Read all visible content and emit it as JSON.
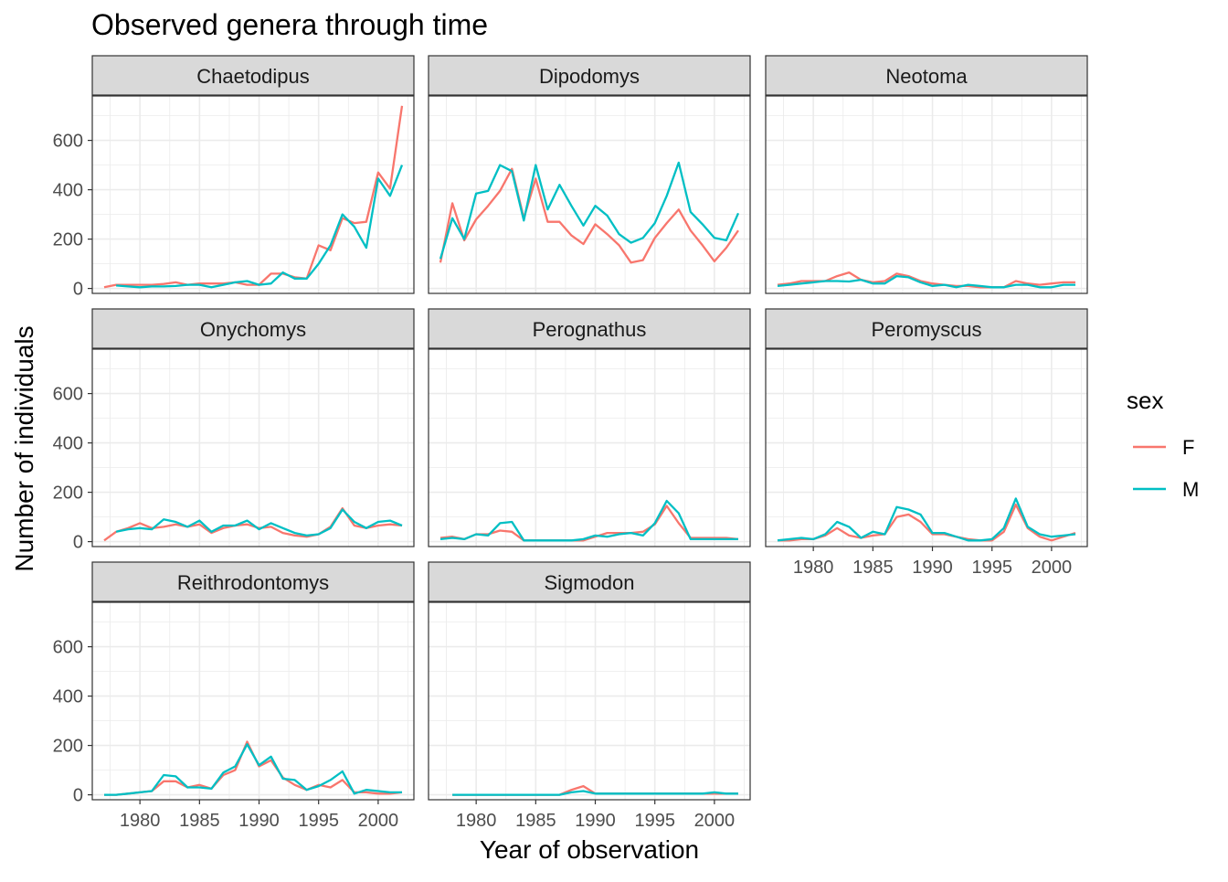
{
  "title": "Observed genera through time",
  "xlabel": "Year of observation",
  "ylabel": "Number of individuals",
  "legend": {
    "title": "sex",
    "placement": "right",
    "entries": [
      {
        "label": "F",
        "color": "#F8766D"
      },
      {
        "label": "M",
        "color": "#00BFC4"
      }
    ]
  },
  "chart_data": {
    "type": "line",
    "facet_layout": "3-column wrap",
    "x_ticks": [
      1980,
      1985,
      1990,
      1995,
      2000
    ],
    "y_ticks": [
      0,
      200,
      400,
      600
    ],
    "xlim": [
      1976,
      2003
    ],
    "ylim": [
      -20,
      780
    ],
    "grid": true,
    "panels": [
      {
        "name": "Chaetodipus",
        "series": [
          {
            "name": "F",
            "x": [
              1977,
              1978,
              1979,
              1980,
              1981,
              1982,
              1983,
              1984,
              1985,
              1986,
              1987,
              1988,
              1989,
              1990,
              1991,
              1992,
              1993,
              1994,
              1995,
              1996,
              1997,
              1998,
              1999,
              2000,
              2001,
              2002
            ],
            "values": [
              5,
              15,
              15,
              15,
              15,
              18,
              25,
              15,
              20,
              20,
              20,
              25,
              15,
              15,
              60,
              60,
              45,
              40,
              175,
              155,
              285,
              265,
              270,
              470,
              405,
              740
            ]
          },
          {
            "name": "M",
            "x": [
              1978,
              1979,
              1980,
              1981,
              1982,
              1983,
              1984,
              1985,
              1986,
              1987,
              1988,
              1989,
              1990,
              1991,
              1992,
              1993,
              1994,
              1995,
              1996,
              1997,
              1998,
              1999,
              2000,
              2001,
              2002
            ],
            "values": [
              12,
              8,
              5,
              8,
              8,
              10,
              15,
              15,
              5,
              15,
              25,
              30,
              15,
              20,
              65,
              40,
              40,
              100,
              175,
              300,
              250,
              165,
              445,
              375,
              500
            ]
          }
        ]
      },
      {
        "name": "Dipodomys",
        "series": [
          {
            "name": "F",
            "x": [
              1977,
              1978,
              1979,
              1980,
              1981,
              1982,
              1983,
              1984,
              1985,
              1986,
              1987,
              1988,
              1989,
              1990,
              1991,
              1992,
              1993,
              1994,
              1995,
              1996,
              1997,
              1998,
              1999,
              2000,
              2001,
              2002
            ],
            "values": [
              105,
              345,
              195,
              280,
              335,
              395,
              485,
              285,
              445,
              270,
              270,
              215,
              180,
              260,
              220,
              175,
              105,
              115,
              205,
              265,
              320,
              235,
              175,
              110,
              165,
              235
            ]
          },
          {
            "name": "M",
            "x": [
              1977,
              1978,
              1979,
              1980,
              1981,
              1982,
              1983,
              1984,
              1985,
              1986,
              1987,
              1988,
              1989,
              1990,
              1991,
              1992,
              1993,
              1994,
              1995,
              1996,
              1997,
              1998,
              1999,
              2000,
              2001,
              2002
            ],
            "values": [
              120,
              285,
              200,
              385,
              395,
              500,
              475,
              275,
              500,
              320,
              420,
              335,
              255,
              335,
              295,
              220,
              185,
              205,
              265,
              375,
              510,
              310,
              260,
              205,
              195,
              305
            ]
          }
        ]
      },
      {
        "name": "Neotoma",
        "series": [
          {
            "name": "F",
            "x": [
              1977,
              1978,
              1979,
              1980,
              1981,
              1982,
              1983,
              1984,
              1985,
              1986,
              1987,
              1988,
              1989,
              1990,
              1991,
              1992,
              1993,
              1994,
              1995,
              1996,
              1997,
              1998,
              1999,
              2000,
              2001,
              2002
            ],
            "values": [
              15,
              20,
              30,
              30,
              30,
              50,
              65,
              35,
              25,
              30,
              60,
              50,
              30,
              20,
              15,
              10,
              10,
              5,
              5,
              5,
              30,
              20,
              15,
              20,
              25,
              25
            ]
          },
          {
            "name": "M",
            "x": [
              1977,
              1978,
              1979,
              1980,
              1981,
              1982,
              1983,
              1984,
              1985,
              1986,
              1987,
              1988,
              1989,
              1990,
              1991,
              1992,
              1993,
              1994,
              1995,
              1996,
              1997,
              1998,
              1999,
              2000,
              2001,
              2002
            ],
            "values": [
              10,
              15,
              20,
              25,
              30,
              30,
              28,
              35,
              20,
              20,
              50,
              45,
              25,
              10,
              15,
              5,
              15,
              10,
              5,
              5,
              15,
              15,
              5,
              5,
              15,
              15
            ]
          }
        ]
      },
      {
        "name": "Onychomys",
        "series": [
          {
            "name": "F",
            "x": [
              1977,
              1978,
              1979,
              1980,
              1981,
              1982,
              1983,
              1984,
              1985,
              1986,
              1987,
              1988,
              1989,
              1990,
              1991,
              1992,
              1993,
              1994,
              1995,
              1996,
              1997,
              1998,
              1999,
              2000,
              2001,
              2002
            ],
            "values": [
              5,
              40,
              55,
              75,
              55,
              60,
              70,
              60,
              70,
              35,
              55,
              65,
              70,
              55,
              60,
              35,
              25,
              20,
              30,
              60,
              135,
              65,
              55,
              65,
              70,
              65
            ]
          },
          {
            "name": "M",
            "x": [
              1978,
              1979,
              1980,
              1981,
              1982,
              1983,
              1984,
              1985,
              1986,
              1987,
              1988,
              1989,
              1990,
              1991,
              1992,
              1993,
              1994,
              1995,
              1996,
              1997,
              1998,
              1999,
              2000,
              2001,
              2002
            ],
            "values": [
              40,
              50,
              55,
              50,
              90,
              80,
              60,
              85,
              40,
              65,
              65,
              85,
              50,
              75,
              55,
              35,
              25,
              30,
              55,
              130,
              80,
              55,
              80,
              85,
              65
            ]
          }
        ]
      },
      {
        "name": "Perognathus",
        "series": [
          {
            "name": "F",
            "x": [
              1977,
              1978,
              1979,
              1980,
              1981,
              1982,
              1983,
              1984,
              1985,
              1986,
              1987,
              1988,
              1989,
              1990,
              1991,
              1992,
              1993,
              1994,
              1995,
              1996,
              1997,
              1998,
              1999,
              2000,
              2001,
              2002
            ],
            "values": [
              15,
              20,
              10,
              30,
              30,
              45,
              40,
              5,
              5,
              5,
              5,
              5,
              5,
              20,
              35,
              35,
              35,
              40,
              70,
              145,
              75,
              15,
              15,
              15,
              15,
              10
            ]
          },
          {
            "name": "M",
            "x": [
              1977,
              1978,
              1979,
              1980,
              1981,
              1982,
              1983,
              1984,
              1985,
              1986,
              1987,
              1988,
              1989,
              1990,
              1991,
              1992,
              1993,
              1994,
              1995,
              1996,
              1997,
              1998,
              1999,
              2000,
              2001,
              2002
            ],
            "values": [
              10,
              15,
              10,
              30,
              25,
              75,
              80,
              5,
              5,
              5,
              5,
              5,
              10,
              25,
              20,
              30,
              35,
              25,
              75,
              165,
              115,
              10,
              10,
              10,
              10,
              10
            ]
          }
        ]
      },
      {
        "name": "Peromyscus",
        "series": [
          {
            "name": "F",
            "x": [
              1977,
              1978,
              1979,
              1980,
              1981,
              1982,
              1983,
              1984,
              1985,
              1986,
              1987,
              1988,
              1989,
              1990,
              1991,
              1992,
              1993,
              1994,
              1995,
              1996,
              1997,
              1998,
              1999,
              2000,
              2001,
              2002
            ],
            "values": [
              5,
              5,
              10,
              10,
              25,
              55,
              25,
              15,
              25,
              30,
              100,
              110,
              80,
              30,
              30,
              20,
              10,
              5,
              5,
              40,
              150,
              55,
              20,
              5,
              20,
              35
            ]
          },
          {
            "name": "M",
            "x": [
              1977,
              1978,
              1979,
              1980,
              1981,
              1982,
              1983,
              1984,
              1985,
              1986,
              1987,
              1988,
              1989,
              1990,
              1991,
              1992,
              1993,
              1994,
              1995,
              1996,
              1997,
              1998,
              1999,
              2000,
              2001,
              2002
            ],
            "values": [
              5,
              10,
              15,
              10,
              30,
              80,
              60,
              15,
              40,
              30,
              140,
              130,
              110,
              35,
              35,
              20,
              5,
              5,
              10,
              55,
              175,
              60,
              30,
              20,
              25,
              30
            ]
          }
        ]
      },
      {
        "name": "Reithrodontomys",
        "series": [
          {
            "name": "F",
            "x": [
              1977,
              1978,
              1979,
              1980,
              1981,
              1982,
              1983,
              1984,
              1985,
              1986,
              1987,
              1988,
              1989,
              1990,
              1991,
              1992,
              1993,
              1994,
              1995,
              1996,
              1997,
              1998,
              1999,
              2000,
              2001,
              2002
            ],
            "values": [
              0,
              0,
              5,
              10,
              15,
              55,
              55,
              30,
              40,
              25,
              80,
              100,
              215,
              115,
              140,
              70,
              40,
              20,
              40,
              30,
              60,
              10,
              10,
              5,
              5,
              10
            ]
          },
          {
            "name": "M",
            "x": [
              1977,
              1978,
              1979,
              1980,
              1981,
              1982,
              1983,
              1984,
              1985,
              1986,
              1987,
              1988,
              1989,
              1990,
              1991,
              1992,
              1993,
              1994,
              1995,
              1996,
              1997,
              1998,
              1999,
              2000,
              2001,
              2002
            ],
            "values": [
              0,
              0,
              5,
              10,
              15,
              80,
              75,
              30,
              30,
              25,
              90,
              115,
              205,
              120,
              155,
              65,
              60,
              20,
              35,
              60,
              95,
              5,
              20,
              15,
              10,
              10
            ]
          }
        ]
      },
      {
        "name": "Sigmodon",
        "series": [
          {
            "name": "F",
            "x": [
              1978,
              1979,
              1980,
              1981,
              1982,
              1983,
              1984,
              1985,
              1986,
              1987,
              1988,
              1989,
              1990,
              1991,
              1992,
              1993,
              1994,
              1995,
              1996,
              1997,
              1998,
              1999,
              2000,
              2001,
              2002
            ],
            "values": [
              0,
              0,
              0,
              0,
              0,
              0,
              0,
              0,
              0,
              0,
              20,
              35,
              5,
              5,
              5,
              5,
              5,
              5,
              5,
              5,
              5,
              5,
              5,
              5,
              5
            ]
          },
          {
            "name": "M",
            "x": [
              1978,
              1979,
              1980,
              1981,
              1982,
              1983,
              1984,
              1985,
              1986,
              1987,
              1988,
              1989,
              1990,
              1991,
              1992,
              1993,
              1994,
              1995,
              1996,
              1997,
              1998,
              1999,
              2000,
              2001,
              2002
            ],
            "values": [
              0,
              0,
              0,
              0,
              0,
              0,
              0,
              0,
              0,
              0,
              10,
              15,
              5,
              5,
              5,
              5,
              5,
              5,
              5,
              5,
              5,
              5,
              10,
              5,
              5
            ]
          }
        ]
      }
    ]
  }
}
